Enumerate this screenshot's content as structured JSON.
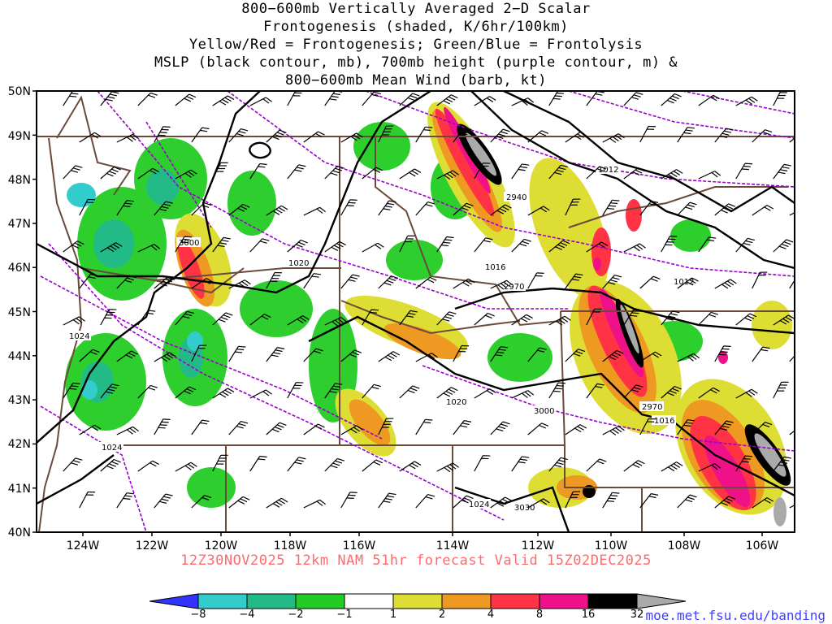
{
  "title_lines": [
    "800−600mb Vertically Averaged 2−D Scalar",
    "Frontogenesis (shaded, K/6hr/100km)",
    "Yellow/Red = Frontogenesis;  Green/Blue = Frontolysis",
    "MSLP (black contour, mb), 700mb height (purple contour, m) &",
    "800−600mb Mean Wind (barb, kt)"
  ],
  "footer": "12Z30NOV2025 12km NAM 51hr forecast Valid 15Z02DEC2025",
  "credit": "moe.met.fsu.edu/banding",
  "axes": {
    "lat_labels": [
      "50N",
      "49N",
      "48N",
      "47N",
      "46N",
      "45N",
      "44N",
      "43N",
      "42N",
      "41N",
      "40N"
    ],
    "lon_labels": [
      "124W",
      "122W",
      "120W",
      "118W",
      "116W",
      "114W",
      "112W",
      "110W",
      "108W",
      "106W"
    ]
  },
  "contour_labels": {
    "mslp": [
      "1012",
      "1016",
      "1012",
      "1020",
      "1024",
      "1020",
      "1016",
      "1024",
      "1024"
    ],
    "height": [
      "2940",
      "3000",
      "2970",
      "2970",
      "3000",
      "3030"
    ]
  },
  "colorbar": {
    "labels": [
      "−8",
      "−4",
      "−2",
      "−1",
      "1",
      "2",
      "4",
      "8",
      "16",
      "32"
    ],
    "colors": [
      "#3333ff",
      "#33cccc",
      "#22bb88",
      "#22cc22",
      "#ffffff",
      "#dddd33",
      "#ee9922",
      "#ff3344",
      "#ee1188",
      "#000000",
      "#aaaaaa"
    ]
  },
  "colors": {
    "mslp_contour": "#000000",
    "height_contour": "#9900cc",
    "borders": "#6b4a3a",
    "footer": "#ff6b6b",
    "credit": "#4040ff"
  }
}
